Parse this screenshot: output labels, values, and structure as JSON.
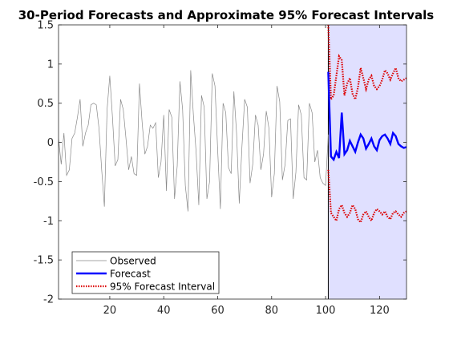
{
  "chart_data": {
    "type": "line",
    "title": "30-Period Forecasts and Approximate 95% Forecast Intervals",
    "xlabel": "",
    "ylabel": "",
    "xlim": [
      1,
      130
    ],
    "ylim": [
      -2,
      1.5
    ],
    "xticks": [
      20,
      40,
      60,
      80,
      100,
      120
    ],
    "xtick_labels": [
      "20",
      "40",
      "60",
      "80",
      "100",
      "120"
    ],
    "yticks": [
      1.5,
      1,
      0.5,
      0,
      -0.5,
      -1,
      -1.5,
      -2
    ],
    "ytick_labels": [
      "1.5",
      "1",
      "0.5",
      "0",
      "-0.5",
      "-1",
      "-1.5",
      "-2"
    ],
    "grid": false,
    "legend_position": "bottom-left",
    "shaded_region": {
      "x": [
        101,
        130
      ],
      "color": "#e0e0ff"
    },
    "series": [
      {
        "name": "Observed",
        "color": "#888888",
        "style": "thin-solid",
        "x_start": 1,
        "values": [
          0.05,
          -0.28,
          0.12,
          -0.42,
          -0.35,
          0.05,
          0.12,
          0.32,
          0.55,
          -0.05,
          0.12,
          0.22,
          0.48,
          0.5,
          0.48,
          0.18,
          -0.35,
          -0.82,
          0.42,
          0.85,
          0.32,
          -0.3,
          -0.22,
          0.55,
          0.42,
          0.05,
          -0.35,
          -0.18,
          -0.4,
          -0.42,
          0.75,
          0.25,
          -0.15,
          -0.05,
          0.22,
          0.18,
          0.25,
          -0.45,
          -0.25,
          0.35,
          -0.62,
          0.42,
          0.32,
          -0.72,
          -0.3,
          0.78,
          0.42,
          -0.55,
          -0.88,
          0.92,
          0.35,
          -0.12,
          -0.8,
          0.6,
          0.45,
          -0.72,
          -0.5,
          0.88,
          0.72,
          -0.1,
          -0.85,
          0.5,
          0.38,
          -0.32,
          -0.4,
          0.65,
          0.12,
          -0.78,
          -0.05,
          0.55,
          0.45,
          -0.52,
          -0.28,
          0.35,
          0.22,
          -0.35,
          -0.15,
          0.4,
          0.18,
          -0.7,
          -0.4,
          0.72,
          0.52,
          -0.48,
          -0.28,
          0.28,
          0.3,
          -0.72,
          -0.38,
          0.48,
          0.35,
          -0.45,
          -0.48,
          0.5,
          0.38,
          -0.25,
          -0.1,
          -0.45,
          -0.52,
          -0.55,
          0.1
        ]
      },
      {
        "name": "Forecast",
        "color": "#0000ff",
        "style": "thick-solid",
        "x_start": 101,
        "values": [
          0.9,
          -0.18,
          -0.22,
          -0.12,
          -0.2,
          0.38,
          -0.15,
          -0.1,
          0.02,
          -0.05,
          -0.12,
          0.0,
          0.1,
          0.05,
          -0.08,
          -0.02,
          0.05,
          -0.05,
          -0.1,
          0.03,
          0.08,
          0.1,
          0.05,
          -0.02,
          0.12,
          0.08,
          -0.02,
          -0.05,
          -0.07,
          -0.06
        ]
      },
      {
        "name": "95% Forecast Interval",
        "color": "#dd0000",
        "style": "dotted",
        "x_start": 101,
        "upper": [
          1.5,
          0.55,
          0.6,
          0.85,
          1.1,
          1.05,
          0.6,
          0.75,
          0.82,
          0.62,
          0.55,
          0.7,
          0.95,
          0.82,
          0.68,
          0.8,
          0.85,
          0.72,
          0.68,
          0.72,
          0.8,
          0.92,
          0.88,
          0.8,
          0.88,
          0.95,
          0.82,
          0.78,
          0.8,
          0.82
        ],
        "lower": [
          -0.35,
          -0.9,
          -0.95,
          -1.0,
          -0.85,
          -0.8,
          -0.9,
          -0.95,
          -0.9,
          -0.8,
          -0.85,
          -0.98,
          -1.02,
          -0.92,
          -0.88,
          -0.95,
          -1.0,
          -0.9,
          -0.85,
          -0.88,
          -0.92,
          -0.88,
          -0.95,
          -0.98,
          -0.9,
          -0.88,
          -0.92,
          -0.95,
          -0.9,
          -0.88
        ]
      }
    ]
  }
}
